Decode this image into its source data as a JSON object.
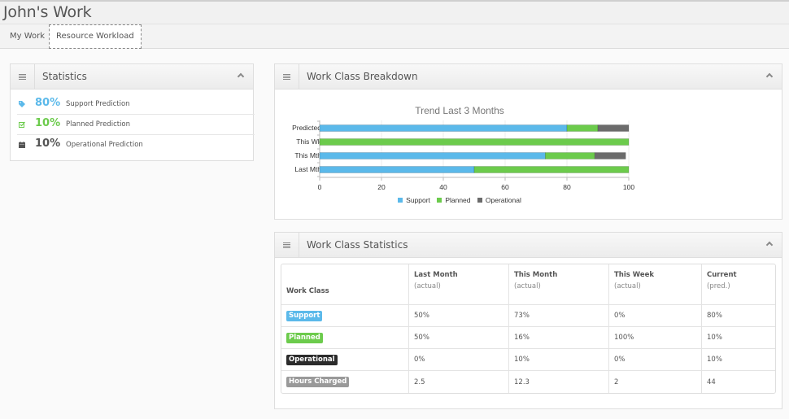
{
  "page": {
    "title": "John's Work"
  },
  "tabs": [
    {
      "label": "My Work"
    },
    {
      "label": "Resource Workload",
      "active": true
    }
  ],
  "colors": {
    "support": "#5bb9ea",
    "planned": "#6ccb4c",
    "operational": "#6b6b6b",
    "hours": "#999999",
    "operational_badge": "#2b2b2b"
  },
  "statistics": {
    "title": "Statistics",
    "icon": "list-icon",
    "items": [
      {
        "icon": "tag-icon",
        "value": "80%",
        "label": "Support Prediction",
        "color": "#5bb9ea"
      },
      {
        "icon": "check-square-icon",
        "value": "10%",
        "label": "Planned Prediction",
        "color": "#6ccb4c"
      },
      {
        "icon": "calendar-icon",
        "value": "10%",
        "label": "Operational Prediction",
        "color": "#555555"
      }
    ]
  },
  "breakdown": {
    "title": "Work Class Breakdown",
    "icon": "list-icon"
  },
  "chart_data": {
    "type": "bar",
    "orientation": "horizontal",
    "stacked": true,
    "title": "Trend Last 3 Months",
    "categories": [
      "Predicted",
      "This Wk",
      "This Mth",
      "Last Mth"
    ],
    "series": [
      {
        "name": "Support",
        "color": "#5bb9ea",
        "values": [
          80,
          0,
          73,
          50
        ]
      },
      {
        "name": "Planned",
        "color": "#6ccb4c",
        "values": [
          10,
          100,
          16,
          50
        ]
      },
      {
        "name": "Operational",
        "color": "#6b6b6b",
        "values": [
          10,
          0,
          10,
          0
        ]
      }
    ],
    "xlim": [
      0,
      100
    ],
    "xticks": [
      "0",
      "20",
      "40",
      "60",
      "80",
      "100"
    ],
    "xlabel": "",
    "ylabel": "",
    "grid": true,
    "legend": "bottom-center"
  },
  "wc_stats": {
    "title": "Work Class Statistics",
    "icon": "list-icon",
    "headers": [
      {
        "label": "Work Class",
        "sub": ""
      },
      {
        "label": "Last Month",
        "sub": "(actual)"
      },
      {
        "label": "This Month",
        "sub": "(actual)"
      },
      {
        "label": "This Week",
        "sub": "(actual)"
      },
      {
        "label": "Current",
        "sub": "(pred.)"
      }
    ],
    "rows": [
      {
        "badge": "Support",
        "color": "#5bb9ea",
        "cells": [
          "50%",
          "73%",
          "0%",
          "80%"
        ]
      },
      {
        "badge": "Planned",
        "color": "#6ccb4c",
        "cells": [
          "50%",
          "16%",
          "100%",
          "10%"
        ]
      },
      {
        "badge": "Operational",
        "color": "#2b2b2b",
        "cells": [
          "0%",
          "10%",
          "0%",
          "10%"
        ]
      },
      {
        "badge": "Hours Charged",
        "color": "#999999",
        "cells": [
          "2.5",
          "12.3",
          "2",
          "44"
        ]
      }
    ]
  }
}
